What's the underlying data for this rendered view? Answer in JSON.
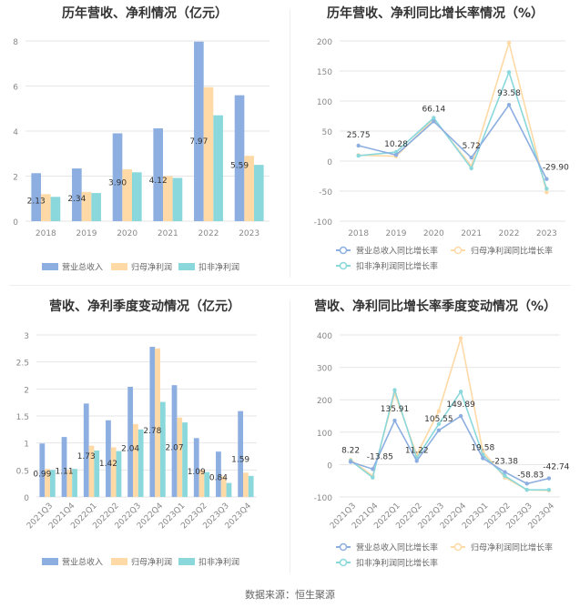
{
  "source": "数据来源：恒生聚源",
  "colors": {
    "revenue": "#8caee0",
    "netprofit": "#ffd9a6",
    "deducted": "#8ad8dc",
    "grid": "#e6e6e6",
    "axis": "#999999"
  },
  "chart_data": [
    {
      "type": "bar",
      "title": "历年营收、净利情况（亿元）",
      "categories": [
        "2018",
        "2019",
        "2020",
        "2021",
        "2022",
        "2023"
      ],
      "series": [
        {
          "name": "营业总收入",
          "values": [
            2.13,
            2.34,
            3.9,
            4.12,
            7.97,
            5.59
          ],
          "labels": [
            "2.13",
            "2.34",
            "3.90",
            "4.12",
            "7.97",
            "5.59"
          ]
        },
        {
          "name": "归母净利润",
          "values": [
            1.2,
            1.3,
            2.3,
            2.0,
            5.95,
            2.9
          ]
        },
        {
          "name": "扣非净利润",
          "values": [
            1.08,
            1.25,
            2.17,
            1.92,
            4.7,
            2.5
          ]
        }
      ],
      "ylim": [
        0,
        8
      ],
      "yticks": [
        0,
        2,
        4,
        6,
        8
      ]
    },
    {
      "type": "line",
      "title": "历年营收、净利同比增长率情况（%）",
      "categories": [
        "2018",
        "2019",
        "2020",
        "2021",
        "2022",
        "2023"
      ],
      "series": [
        {
          "name": "营业总收入同比增长率",
          "values": [
            25.75,
            10.28,
            66.14,
            5.72,
            93.58,
            -29.9
          ],
          "labels": [
            "25.75",
            "10.28",
            "66.14",
            "5.72",
            "93.58",
            "-29.90"
          ]
        },
        {
          "name": "归母净利润同比增长率",
          "values": [
            10,
            8,
            70,
            -8,
            197,
            -52
          ]
        },
        {
          "name": "扣非净利润同比增长率",
          "values": [
            9,
            15,
            72,
            -12,
            148,
            -46
          ]
        }
      ],
      "ylim": [
        -100,
        200
      ],
      "yticks": [
        -100,
        -50,
        0,
        50,
        100,
        150,
        200
      ]
    },
    {
      "type": "bar",
      "title": "营收、净利季度变动情况（亿元）",
      "categories": [
        "2021Q3",
        "2021Q4",
        "2022Q1",
        "2022Q2",
        "2022Q3",
        "2022Q4",
        "2023Q1",
        "2023Q2",
        "2023Q3",
        "2023Q4"
      ],
      "series": [
        {
          "name": "营业总收入",
          "values": [
            0.99,
            1.11,
            1.73,
            1.42,
            2.04,
            2.78,
            2.07,
            1.09,
            0.84,
            1.59
          ],
          "labels": [
            "0.99",
            "1.11",
            "1.73",
            "1.42",
            "2.04",
            "2.78",
            "2.07",
            "1.09",
            "0.84",
            "1.59"
          ]
        },
        {
          "name": "归母净利润",
          "values": [
            0.52,
            0.5,
            0.95,
            0.92,
            1.35,
            2.75,
            1.47,
            0.5,
            0.38,
            0.45
          ]
        },
        {
          "name": "扣非净利润",
          "values": [
            0.5,
            0.52,
            0.86,
            0.85,
            1.25,
            1.76,
            1.38,
            0.46,
            0.26,
            0.39
          ]
        }
      ],
      "ylim": [
        0,
        3
      ],
      "yticks": [
        0,
        0.5,
        1,
        1.5,
        2,
        2.5,
        3
      ],
      "ytick_labels": [
        "0",
        "0.5",
        "1",
        "1.5",
        "2",
        "2.5",
        "3"
      ]
    },
    {
      "type": "line",
      "title": "营收、净利同比增长率季度变动情况（%）",
      "categories": [
        "2021Q3",
        "2021Q4",
        "2022Q1",
        "2022Q2",
        "2022Q3",
        "2022Q4",
        "2023Q1",
        "2023Q2",
        "2023Q3",
        "2023Q4"
      ],
      "series": [
        {
          "name": "营业总收入同比增长率",
          "values": [
            8.22,
            -13.85,
            135.91,
            11.22,
            105.55,
            149.89,
            19.58,
            -23.38,
            -58.83,
            -42.74
          ],
          "labels": [
            "8.22",
            "-13.85",
            "135.91",
            "11.22",
            "105.55",
            "149.89",
            "19.58",
            "-23.38",
            "-58.83",
            "-42.74"
          ]
        },
        {
          "name": "归母净利润同比增长率",
          "values": [
            15,
            -35,
            220,
            30,
            165,
            390,
            40,
            -40,
            -78,
            -80
          ]
        },
        {
          "name": "扣非净利润同比增长率",
          "values": [
            12,
            -40,
            230,
            20,
            125,
            225,
            30,
            -35,
            -78,
            -78
          ]
        }
      ],
      "ylim": [
        -100,
        400
      ],
      "yticks": [
        -100,
        0,
        100,
        200,
        300,
        400
      ]
    }
  ]
}
